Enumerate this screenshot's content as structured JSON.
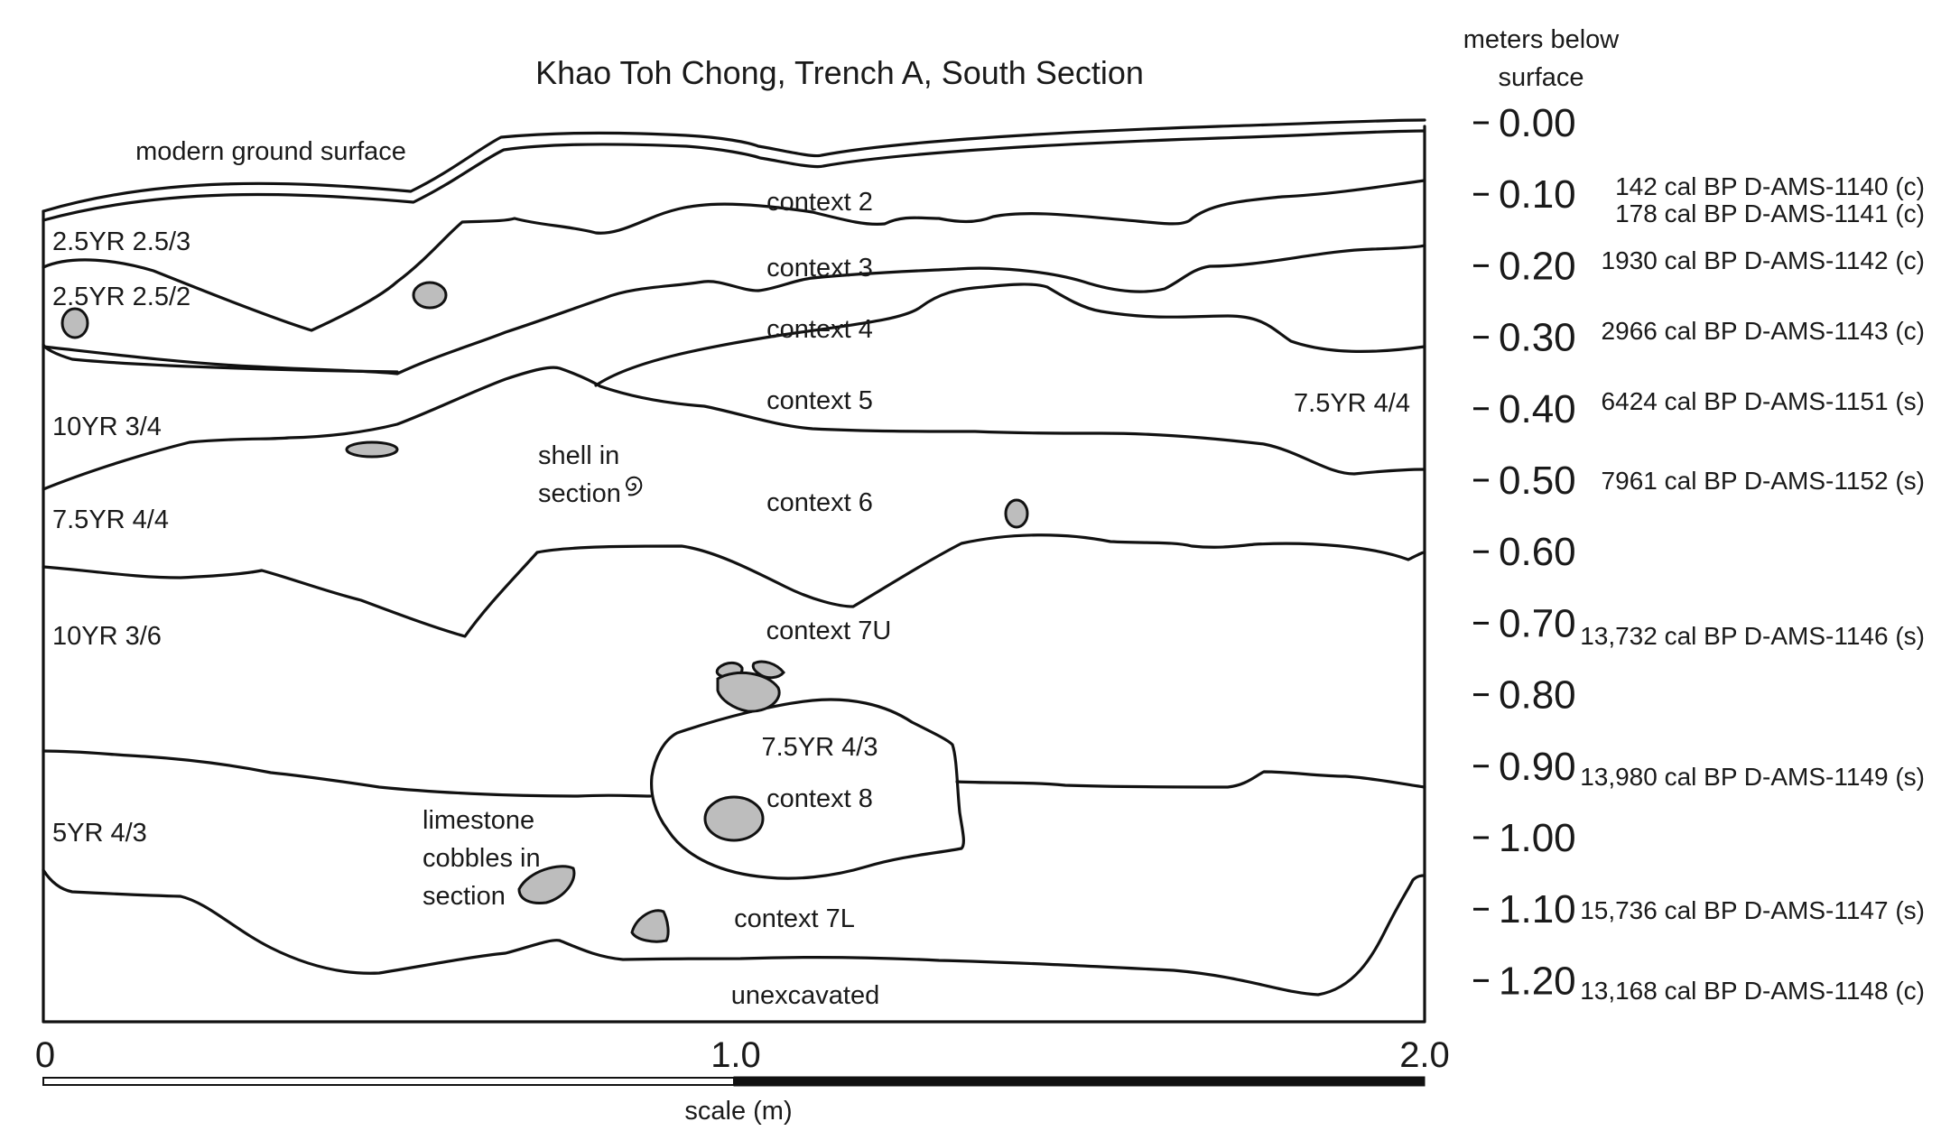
{
  "title": "Khao Toh Chong, Trench A, South Section",
  "depth_axis": {
    "header_line1": "meters below",
    "header_line2": "surface",
    "ticks": [
      "0.00",
      "0.10",
      "0.20",
      "0.30",
      "0.40",
      "0.50",
      "0.60",
      "0.70",
      "0.80",
      "0.90",
      "1.00",
      "1.10",
      "1.20"
    ]
  },
  "dates": [
    "142 cal BP D-AMS-1140 (c)",
    "178 cal BP D-AMS-1141 (c)",
    "1930 cal BP D-AMS-1142 (c)",
    "2966 cal BP D-AMS-1143 (c)",
    "6424 cal BP D-AMS-1151 (s)",
    "7961 cal BP D-AMS-1152 (s)",
    "13,732 cal BP D-AMS-1146 (s)",
    "13,980 cal BP D-AMS-1149 (s)",
    "15,736 cal BP D-AMS-1147 (s)",
    "13,168 cal BP D-AMS-1148 (c)"
  ],
  "labels": {
    "modern_ground_surface": "modern ground surface",
    "context_2": "context 2",
    "context_3": "context 3",
    "context_4": "context 4",
    "context_5": "context 5",
    "context_6": "context 6",
    "context_7u": "context 7U",
    "context_8": "context 8",
    "context_7l": "context 7L",
    "unexcavated": "unexcavated",
    "color_2_5yr_2_5_3": "2.5YR 2.5/3",
    "color_2_5yr_2_5_2": "2.5YR 2.5/2",
    "color_10yr_3_4": "10YR 3/4",
    "color_7_5yr_4_4_left": "7.5YR 4/4",
    "color_7_5yr_4_4_right": "7.5YR 4/4",
    "color_10yr_3_6": "10YR 3/6",
    "color_7_5yr_4_3": "7.5YR 4/3",
    "color_5yr_4_3": "5YR 4/3",
    "shell_line1": "shell in",
    "shell_line2": "section",
    "limestone_line1": "limestone",
    "limestone_line2": "cobbles in",
    "limestone_line3": "section"
  },
  "scale_bar": {
    "ticks": [
      "0",
      "1.0",
      "2.0"
    ],
    "caption": "scale (m)"
  },
  "colors": {
    "line": "#111111",
    "cobble_fill": "#bdbdbd",
    "background": "#ffffff"
  }
}
